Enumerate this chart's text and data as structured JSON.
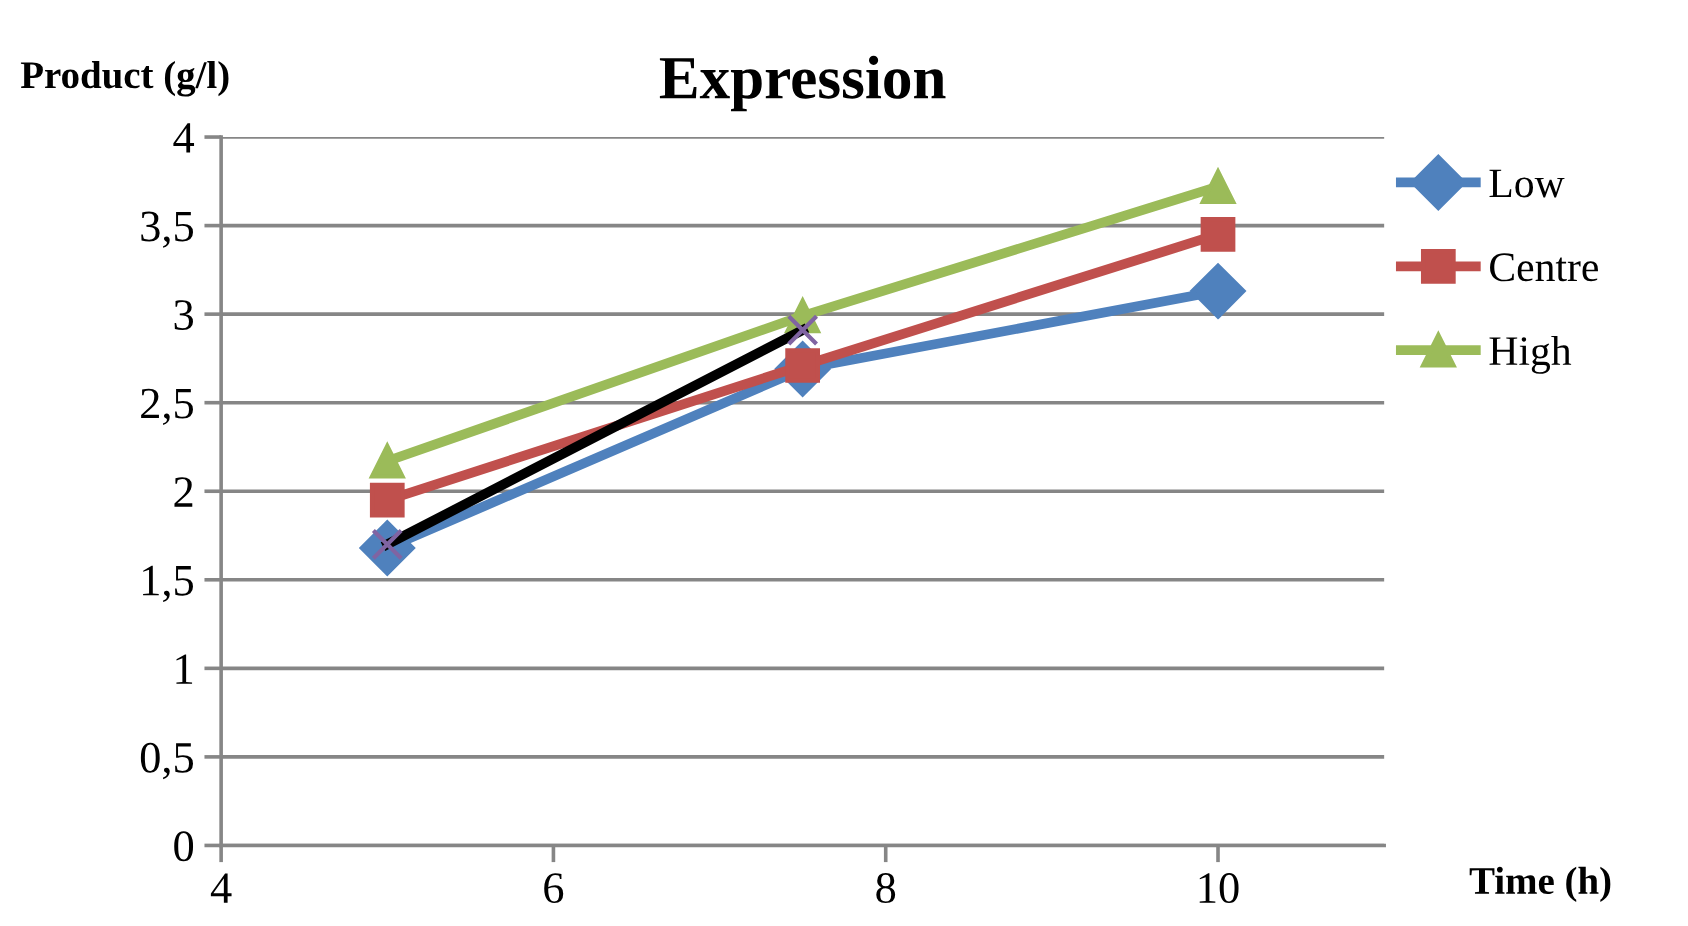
{
  "chart_data": {
    "type": "line",
    "title": "Expression",
    "xlabel": "Time (h)",
    "ylabel": "Product (g/l)",
    "x": [
      5,
      7.5,
      10
    ],
    "series": [
      {
        "name": "Low",
        "color": "#4f81bd",
        "marker": "diamond",
        "values": [
          1.68,
          2.69,
          3.13
        ]
      },
      {
        "name": "Centre",
        "color": "#c0504d",
        "marker": "square",
        "values": [
          1.95,
          2.71,
          3.45
        ]
      },
      {
        "name": "High",
        "color": "#9bbb59",
        "marker": "triangle",
        "values": [
          2.17,
          2.99,
          3.72
        ]
      },
      {
        "color": "#000000",
        "marker": "cross",
        "x": [
          5,
          7.5
        ],
        "values": [
          1.7,
          2.91
        ]
      }
    ],
    "xlim": [
      4,
      11
    ],
    "xticks": [
      4,
      6,
      8,
      10
    ],
    "ylim": [
      0,
      4
    ],
    "yticks": [
      0,
      {
        "value": 0.5,
        "label": "0,5"
      },
      1,
      {
        "value": 1.5,
        "label": "1,5"
      },
      2,
      {
        "value": 2.5,
        "label": "2,5"
      },
      3,
      {
        "value": 3.5,
        "label": "3,5"
      },
      4
    ],
    "grid": "y",
    "legend": "right"
  }
}
